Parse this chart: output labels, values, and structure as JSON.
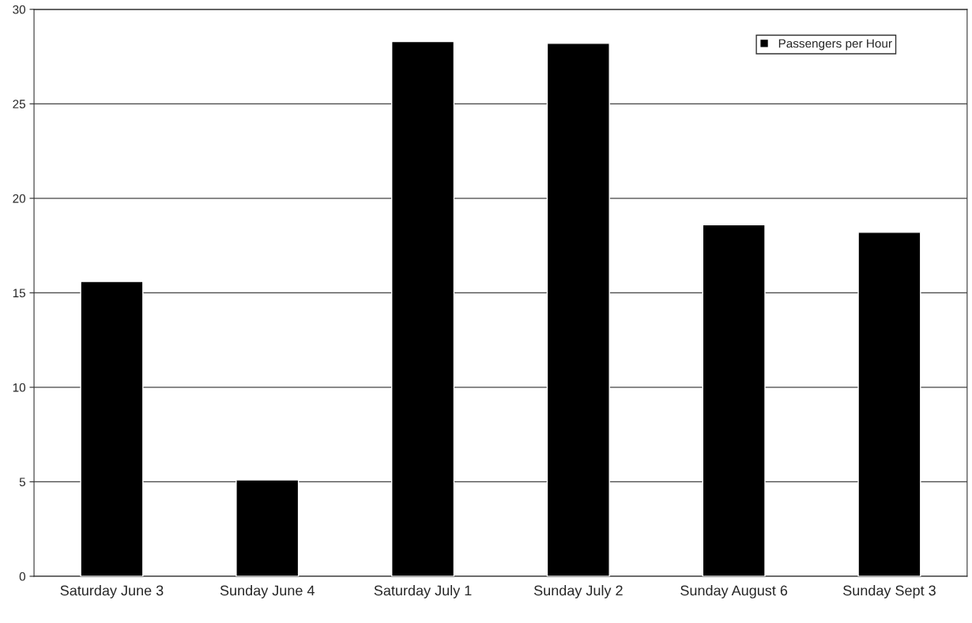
{
  "chart_data": {
    "type": "bar",
    "categories": [
      "Saturday June 3",
      "Sunday June 4",
      "Saturday July 1",
      "Sunday July 2",
      "Sunday August 6",
      "Sunday Sept 3"
    ],
    "series": [
      {
        "name": "Passengers per Hour",
        "color": "#000000",
        "values": [
          15.6,
          5.1,
          28.3,
          28.2,
          18.6,
          18.2
        ]
      }
    ],
    "ylim": [
      0,
      30
    ],
    "yticks": [
      0,
      5,
      10,
      15,
      20,
      25,
      30
    ],
    "grid": "y",
    "legend": "top right"
  }
}
